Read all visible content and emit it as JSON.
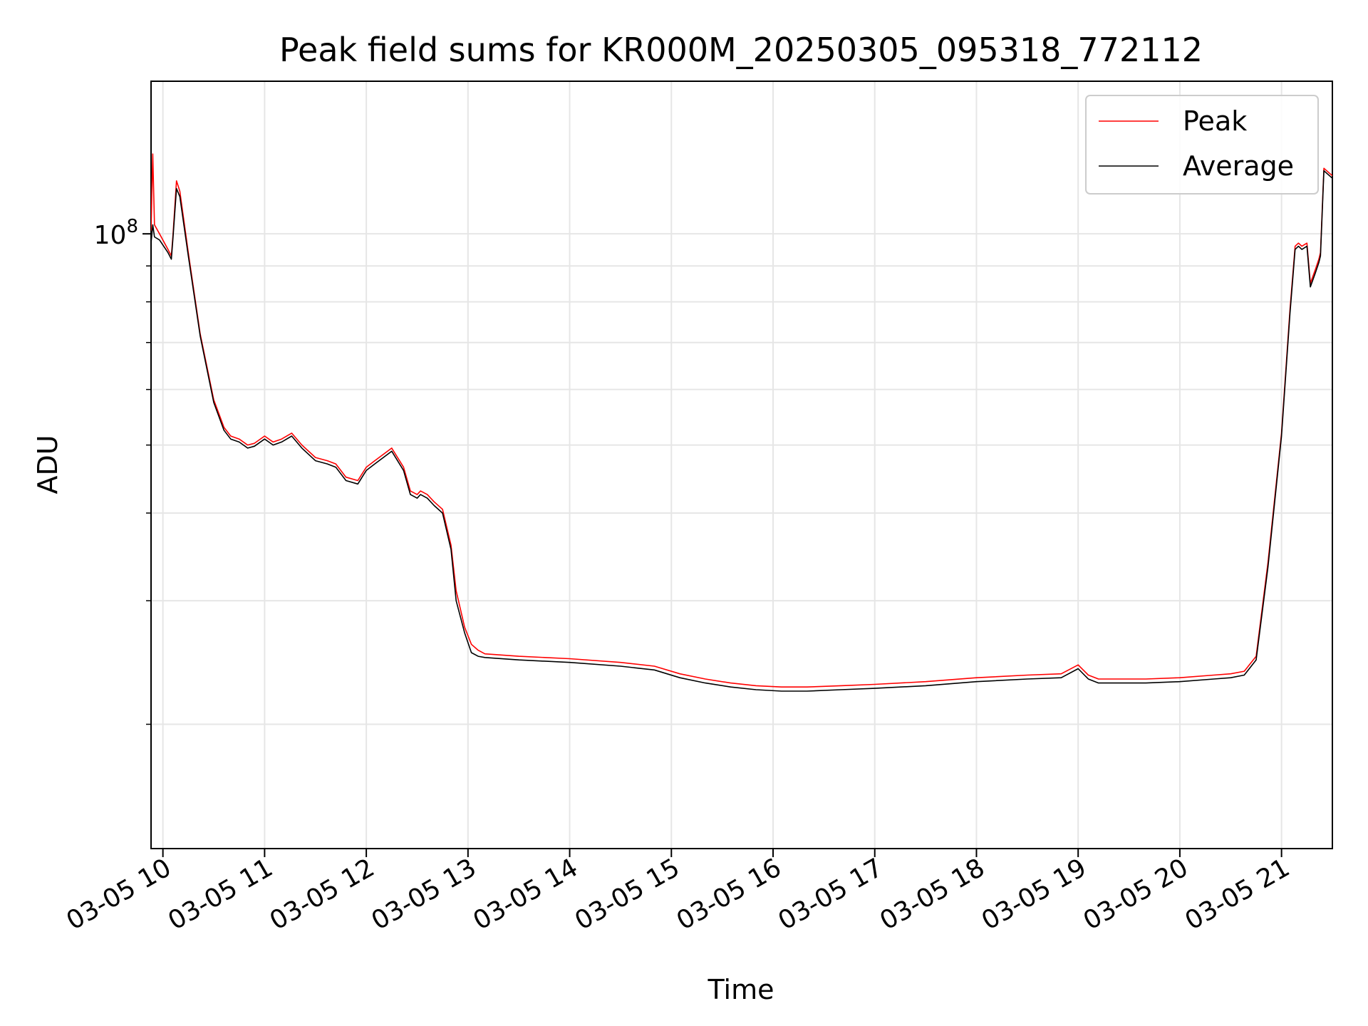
{
  "chart_data": {
    "type": "line",
    "title": "Peak field sums for KR000M_20250305_095318_772112",
    "xlabel": "Time",
    "ylabel": "ADU",
    "yscale": "log",
    "grid": true,
    "legend_position": "top-right",
    "xlim": [
      "2025-03-05 09:53",
      "2025-03-05 21:30"
    ],
    "ylim": [
      13300000,
      165000000
    ],
    "x_ticks": [
      {
        "value": "2025-03-05 10:00",
        "label": "03-05 10"
      },
      {
        "value": "2025-03-05 11:00",
        "label": "03-05 11"
      },
      {
        "value": "2025-03-05 12:00",
        "label": "03-05 12"
      },
      {
        "value": "2025-03-05 13:00",
        "label": "03-05 13"
      },
      {
        "value": "2025-03-05 14:00",
        "label": "03-05 14"
      },
      {
        "value": "2025-03-05 15:00",
        "label": "03-05 15"
      },
      {
        "value": "2025-03-05 16:00",
        "label": "03-05 16"
      },
      {
        "value": "2025-03-05 17:00",
        "label": "03-05 17"
      },
      {
        "value": "2025-03-05 18:00",
        "label": "03-05 18"
      },
      {
        "value": "2025-03-05 19:00",
        "label": "03-05 19"
      },
      {
        "value": "2025-03-05 20:00",
        "label": "03-05 20"
      },
      {
        "value": "2025-03-05 21:00",
        "label": "03-05 21"
      }
    ],
    "y_major_ticks": [
      {
        "value": 100000000,
        "base": "10",
        "exp": "8"
      }
    ],
    "y_minor_ticks": [
      20000000,
      30000000,
      40000000,
      50000000,
      60000000,
      70000000,
      80000000,
      90000000
    ],
    "series": [
      {
        "name": "Peak",
        "color": "#ff0000",
        "x": [
          "2025-03-05 09:53",
          "2025-03-05 09:54",
          "2025-03-05 09:55",
          "2025-03-05 09:58",
          "2025-03-05 10:03",
          "2025-03-05 10:05",
          "2025-03-05 10:06",
          "2025-03-05 10:08",
          "2025-03-05 10:10",
          "2025-03-05 10:15",
          "2025-03-05 10:22",
          "2025-03-05 10:30",
          "2025-03-05 10:36",
          "2025-03-05 10:40",
          "2025-03-05 10:45",
          "2025-03-05 10:50",
          "2025-03-05 10:54",
          "2025-03-05 11:00",
          "2025-03-05 11:05",
          "2025-03-05 11:10",
          "2025-03-05 11:16",
          "2025-03-05 11:22",
          "2025-03-05 11:30",
          "2025-03-05 11:37",
          "2025-03-05 11:42",
          "2025-03-05 11:48",
          "2025-03-05 11:55",
          "2025-03-05 12:00",
          "2025-03-05 12:05",
          "2025-03-05 12:15",
          "2025-03-05 12:22",
          "2025-03-05 12:26",
          "2025-03-05 12:30",
          "2025-03-05 12:32",
          "2025-03-05 12:36",
          "2025-03-05 12:40",
          "2025-03-05 12:45",
          "2025-03-05 12:50",
          "2025-03-05 12:53",
          "2025-03-05 12:58",
          "2025-03-05 13:02",
          "2025-03-05 13:06",
          "2025-03-05 13:10",
          "2025-03-05 13:30",
          "2025-03-05 14:00",
          "2025-03-05 14:30",
          "2025-03-05 14:50",
          "2025-03-05 15:05",
          "2025-03-05 15:20",
          "2025-03-05 15:35",
          "2025-03-05 15:50",
          "2025-03-05 16:05",
          "2025-03-05 16:20",
          "2025-03-05 16:40",
          "2025-03-05 17:00",
          "2025-03-05 17:30",
          "2025-03-05 18:00",
          "2025-03-05 18:30",
          "2025-03-05 18:50",
          "2025-03-05 19:00",
          "2025-03-05 19:06",
          "2025-03-05 19:12",
          "2025-03-05 19:20",
          "2025-03-05 19:40",
          "2025-03-05 20:00",
          "2025-03-05 20:20",
          "2025-03-05 20:30",
          "2025-03-05 20:38",
          "2025-03-05 20:45",
          "2025-03-05 20:52",
          "2025-03-05 21:00",
          "2025-03-05 21:05",
          "2025-03-05 21:08",
          "2025-03-05 21:10",
          "2025-03-05 21:12",
          "2025-03-05 21:15",
          "2025-03-05 21:17",
          "2025-03-05 21:20",
          "2025-03-05 21:22",
          "2025-03-05 21:23",
          "2025-03-05 21:25",
          "2025-03-05 21:30"
        ],
        "values": [
          101000000,
          130000000,
          103000000,
          100000000,
          95000000,
          93000000,
          100000000,
          119000000,
          115000000,
          94000000,
          72000000,
          58000000,
          53000000,
          51500000,
          51000000,
          50000000,
          50300000,
          51500000,
          50500000,
          51000000,
          52000000,
          50000000,
          48000000,
          47500000,
          47000000,
          45000000,
          44500000,
          46500000,
          47500000,
          49500000,
          46500000,
          43000000,
          42500000,
          43000000,
          42500000,
          41500000,
          40500000,
          36000000,
          31000000,
          27500000,
          26000000,
          25500000,
          25200000,
          25000000,
          24800000,
          24500000,
          24200000,
          23600000,
          23200000,
          22900000,
          22700000,
          22600000,
          22600000,
          22700000,
          22800000,
          23000000,
          23300000,
          23500000,
          23600000,
          24300000,
          23500000,
          23200000,
          23200000,
          23200000,
          23300000,
          23500000,
          23600000,
          23800000,
          25000000,
          34000000,
          52000000,
          78000000,
          96000000,
          97000000,
          96000000,
          97000000,
          85000000,
          89000000,
          92000000,
          94000000,
          124000000,
          121000000
        ]
      },
      {
        "name": "Average",
        "color": "#000000",
        "x": [
          "2025-03-05 09:53",
          "2025-03-05 09:54",
          "2025-03-05 09:55",
          "2025-03-05 09:58",
          "2025-03-05 10:03",
          "2025-03-05 10:05",
          "2025-03-05 10:06",
          "2025-03-05 10:08",
          "2025-03-05 10:10",
          "2025-03-05 10:15",
          "2025-03-05 10:22",
          "2025-03-05 10:30",
          "2025-03-05 10:36",
          "2025-03-05 10:40",
          "2025-03-05 10:45",
          "2025-03-05 10:50",
          "2025-03-05 10:54",
          "2025-03-05 11:00",
          "2025-03-05 11:05",
          "2025-03-05 11:10",
          "2025-03-05 11:16",
          "2025-03-05 11:22",
          "2025-03-05 11:30",
          "2025-03-05 11:37",
          "2025-03-05 11:42",
          "2025-03-05 11:48",
          "2025-03-05 11:55",
          "2025-03-05 12:00",
          "2025-03-05 12:05",
          "2025-03-05 12:15",
          "2025-03-05 12:22",
          "2025-03-05 12:26",
          "2025-03-05 12:30",
          "2025-03-05 12:32",
          "2025-03-05 12:36",
          "2025-03-05 12:40",
          "2025-03-05 12:45",
          "2025-03-05 12:50",
          "2025-03-05 12:53",
          "2025-03-05 12:58",
          "2025-03-05 13:02",
          "2025-03-05 13:06",
          "2025-03-05 13:10",
          "2025-03-05 13:30",
          "2025-03-05 14:00",
          "2025-03-05 14:30",
          "2025-03-05 14:50",
          "2025-03-05 15:05",
          "2025-03-05 15:20",
          "2025-03-05 15:35",
          "2025-03-05 15:50",
          "2025-03-05 16:05",
          "2025-03-05 16:20",
          "2025-03-05 16:40",
          "2025-03-05 17:00",
          "2025-03-05 17:30",
          "2025-03-05 18:00",
          "2025-03-05 18:30",
          "2025-03-05 18:50",
          "2025-03-05 19:00",
          "2025-03-05 19:06",
          "2025-03-05 19:12",
          "2025-03-05 19:20",
          "2025-03-05 19:40",
          "2025-03-05 20:00",
          "2025-03-05 20:20",
          "2025-03-05 20:30",
          "2025-03-05 20:38",
          "2025-03-05 20:45",
          "2025-03-05 20:52",
          "2025-03-05 21:00",
          "2025-03-05 21:05",
          "2025-03-05 21:08",
          "2025-03-05 21:10",
          "2025-03-05 21:12",
          "2025-03-05 21:15",
          "2025-03-05 21:17",
          "2025-03-05 21:20",
          "2025-03-05 21:22",
          "2025-03-05 21:23",
          "2025-03-05 21:25",
          "2025-03-05 21:30"
        ],
        "values": [
          97000000,
          103000000,
          99000000,
          98000000,
          94000000,
          92000000,
          99000000,
          116000000,
          113000000,
          93000000,
          71500000,
          57500000,
          52500000,
          51000000,
          50500000,
          49500000,
          49800000,
          51000000,
          50000000,
          50500000,
          51500000,
          49500000,
          47500000,
          47000000,
          46500000,
          44500000,
          44000000,
          46000000,
          47000000,
          49000000,
          46000000,
          42500000,
          42000000,
          42500000,
          42000000,
          41000000,
          40000000,
          35500000,
          30000000,
          27000000,
          25300000,
          25000000,
          24900000,
          24700000,
          24500000,
          24200000,
          23900000,
          23300000,
          22900000,
          22600000,
          22400000,
          22300000,
          22300000,
          22400000,
          22500000,
          22700000,
          23000000,
          23200000,
          23300000,
          24000000,
          23200000,
          22900000,
          22900000,
          22900000,
          23000000,
          23200000,
          23300000,
          23500000,
          24700000,
          33500000,
          51500000,
          77000000,
          95000000,
          96000000,
          95000000,
          96000000,
          84000000,
          88000000,
          91000000,
          93000000,
          123000000,
          120000000
        ]
      }
    ]
  }
}
